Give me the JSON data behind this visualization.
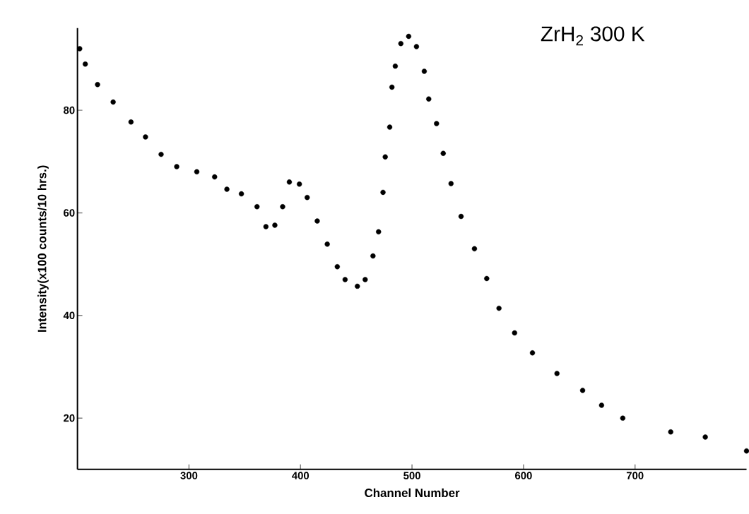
{
  "chart_data": {
    "type": "scatter",
    "title": "ZrH$_{2}$   300 K",
    "xlabel": "Channel Number",
    "ylabel": "Intensity(x100 counts/10 hrs.)",
    "xlim": [
      200,
      800
    ],
    "ylim": [
      10,
      96
    ],
    "xticks": [
      300,
      400,
      500,
      600,
      700
    ],
    "yticks": [
      20,
      40,
      60,
      80
    ],
    "grid": false,
    "marker": "circle",
    "series": [
      {
        "color": "#000000",
        "x": [
          202,
          207,
          218,
          232,
          248,
          261,
          275,
          289,
          307,
          323,
          334,
          347,
          361,
          369,
          377,
          384,
          390,
          399,
          406,
          415,
          424,
          433,
          440,
          451,
          458,
          465,
          470,
          474,
          476,
          480,
          482,
          485,
          490,
          497,
          504,
          511,
          515,
          522,
          528,
          535,
          544,
          556,
          567,
          578,
          592,
          608,
          630,
          653,
          670,
          689,
          732,
          763,
          800
        ],
        "values": [
          92,
          89,
          85,
          81.6,
          77.7,
          74.8,
          71.4,
          69,
          68,
          67,
          64.6,
          63.7,
          61.2,
          57.3,
          57.6,
          61.2,
          66,
          65.6,
          63,
          58.4,
          53.9,
          49.5,
          47,
          45.7,
          47,
          51.6,
          56.3,
          64,
          70.9,
          76.7,
          84.5,
          88.6,
          93,
          94.4,
          92.4,
          87.6,
          82.2,
          77.4,
          71.6,
          65.7,
          59.3,
          53,
          47.2,
          41.4,
          36.6,
          32.7,
          28.7,
          25.4,
          22.5,
          20,
          17.3,
          16.3,
          13.6
        ]
      }
    ]
  }
}
